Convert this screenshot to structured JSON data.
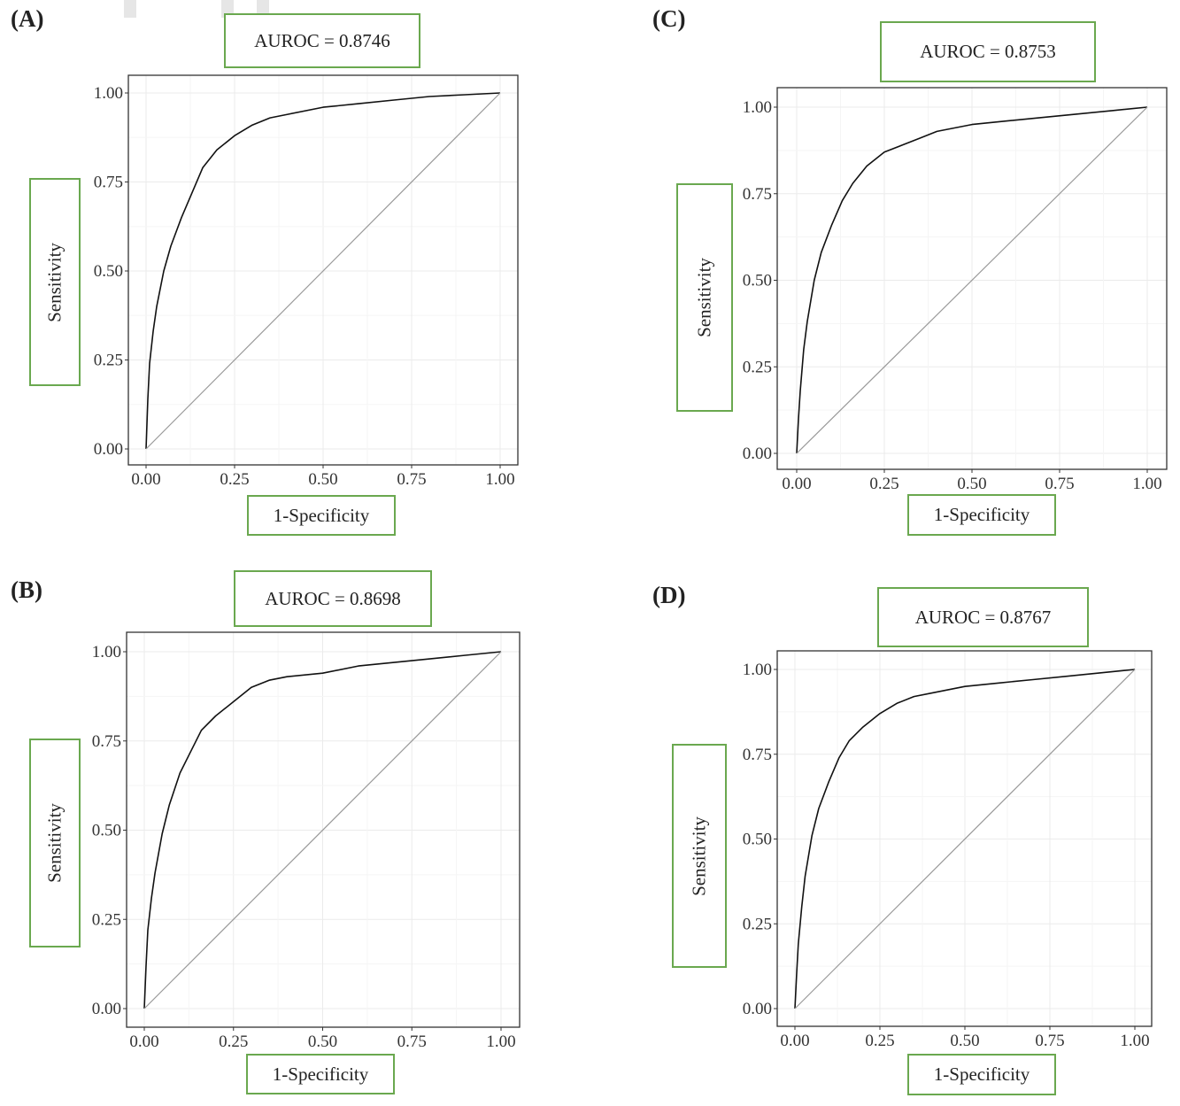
{
  "colors": {
    "box_border": "#6aa84f",
    "curve": "#111111",
    "diagonal": "#999999",
    "grid": "#ebebeb",
    "frame": "#333333"
  },
  "chart_data": [
    {
      "type": "line",
      "panel": "(A)",
      "title": "AUROC = 0.8746",
      "xlabel": "1-Specificity",
      "ylabel": "Sensitivity",
      "xlim": [
        0,
        1
      ],
      "ylim": [
        0,
        1
      ],
      "xticks": [
        "0.00",
        "0.25",
        "0.50",
        "0.75",
        "1.00"
      ],
      "yticks": [
        "0.00",
        "0.25",
        "0.50",
        "0.75",
        "1.00"
      ],
      "grid": true,
      "series": [
        {
          "name": "ROC",
          "x": [
            0,
            0.005,
            0.01,
            0.02,
            0.03,
            0.05,
            0.07,
            0.1,
            0.13,
            0.16,
            0.2,
            0.25,
            0.3,
            0.35,
            0.4,
            0.5,
            0.6,
            0.7,
            0.8,
            0.9,
            1.0
          ],
          "y": [
            0,
            0.14,
            0.24,
            0.33,
            0.4,
            0.5,
            0.57,
            0.65,
            0.72,
            0.79,
            0.84,
            0.88,
            0.91,
            0.93,
            0.94,
            0.96,
            0.97,
            0.98,
            0.99,
            0.995,
            1.0
          ]
        },
        {
          "name": "Reference",
          "x": [
            0,
            1
          ],
          "y": [
            0,
            1
          ]
        }
      ]
    },
    {
      "type": "line",
      "panel": "(B)",
      "title": "AUROC = 0.8698",
      "xlabel": "1-Specificity",
      "ylabel": "Sensitivity",
      "xlim": [
        0,
        1
      ],
      "ylim": [
        0,
        1
      ],
      "xticks": [
        "0.00",
        "0.25",
        "0.50",
        "0.75",
        "1.00"
      ],
      "yticks": [
        "0.00",
        "0.25",
        "0.50",
        "0.75",
        "1.00"
      ],
      "grid": true,
      "series": [
        {
          "name": "ROC",
          "x": [
            0,
            0.005,
            0.01,
            0.02,
            0.03,
            0.05,
            0.07,
            0.1,
            0.13,
            0.16,
            0.2,
            0.25,
            0.3,
            0.35,
            0.4,
            0.5,
            0.6,
            0.7,
            0.8,
            0.9,
            1.0
          ],
          "y": [
            0,
            0.12,
            0.22,
            0.31,
            0.38,
            0.49,
            0.57,
            0.66,
            0.72,
            0.78,
            0.82,
            0.86,
            0.9,
            0.92,
            0.93,
            0.94,
            0.96,
            0.97,
            0.98,
            0.99,
            1.0
          ]
        },
        {
          "name": "Reference",
          "x": [
            0,
            1
          ],
          "y": [
            0,
            1
          ]
        }
      ]
    },
    {
      "type": "line",
      "panel": "(C)",
      "title": "AUROC = 0.8753",
      "xlabel": "1-Specificity",
      "ylabel": "Sensitivity",
      "xlim": [
        0,
        1
      ],
      "ylim": [
        0,
        1
      ],
      "xticks": [
        "0.00",
        "0.25",
        "0.50",
        "0.75",
        "1.00"
      ],
      "yticks": [
        "0.00",
        "0.25",
        "0.50",
        "0.75",
        "1.00"
      ],
      "grid": true,
      "series": [
        {
          "name": "ROC",
          "x": [
            0,
            0.005,
            0.01,
            0.02,
            0.03,
            0.05,
            0.07,
            0.1,
            0.13,
            0.16,
            0.2,
            0.25,
            0.3,
            0.35,
            0.4,
            0.5,
            0.6,
            0.7,
            0.8,
            0.9,
            1.0
          ],
          "y": [
            0,
            0.1,
            0.18,
            0.3,
            0.38,
            0.5,
            0.58,
            0.66,
            0.73,
            0.78,
            0.83,
            0.87,
            0.89,
            0.91,
            0.93,
            0.95,
            0.96,
            0.97,
            0.98,
            0.99,
            1.0
          ]
        },
        {
          "name": "Reference",
          "x": [
            0,
            1
          ],
          "y": [
            0,
            1
          ]
        }
      ]
    },
    {
      "type": "line",
      "panel": "(D)",
      "title": "AUROC = 0.8767",
      "xlabel": "1-Specificity",
      "ylabel": "Sensitivity",
      "xlim": [
        0,
        1
      ],
      "ylim": [
        0,
        1
      ],
      "xticks": [
        "0.00",
        "0.25",
        "0.50",
        "0.75",
        "1.00"
      ],
      "yticks": [
        "0.00",
        "0.25",
        "0.50",
        "0.75",
        "1.00"
      ],
      "grid": true,
      "series": [
        {
          "name": "ROC",
          "x": [
            0,
            0.005,
            0.01,
            0.02,
            0.03,
            0.05,
            0.07,
            0.1,
            0.13,
            0.16,
            0.2,
            0.25,
            0.3,
            0.35,
            0.4,
            0.5,
            0.6,
            0.7,
            0.8,
            0.9,
            1.0
          ],
          "y": [
            0,
            0.1,
            0.19,
            0.3,
            0.39,
            0.51,
            0.59,
            0.67,
            0.74,
            0.79,
            0.83,
            0.87,
            0.9,
            0.92,
            0.93,
            0.95,
            0.96,
            0.97,
            0.98,
            0.99,
            1.0
          ]
        },
        {
          "name": "Reference",
          "x": [
            0,
            1
          ],
          "y": [
            0,
            1
          ]
        }
      ]
    }
  ]
}
